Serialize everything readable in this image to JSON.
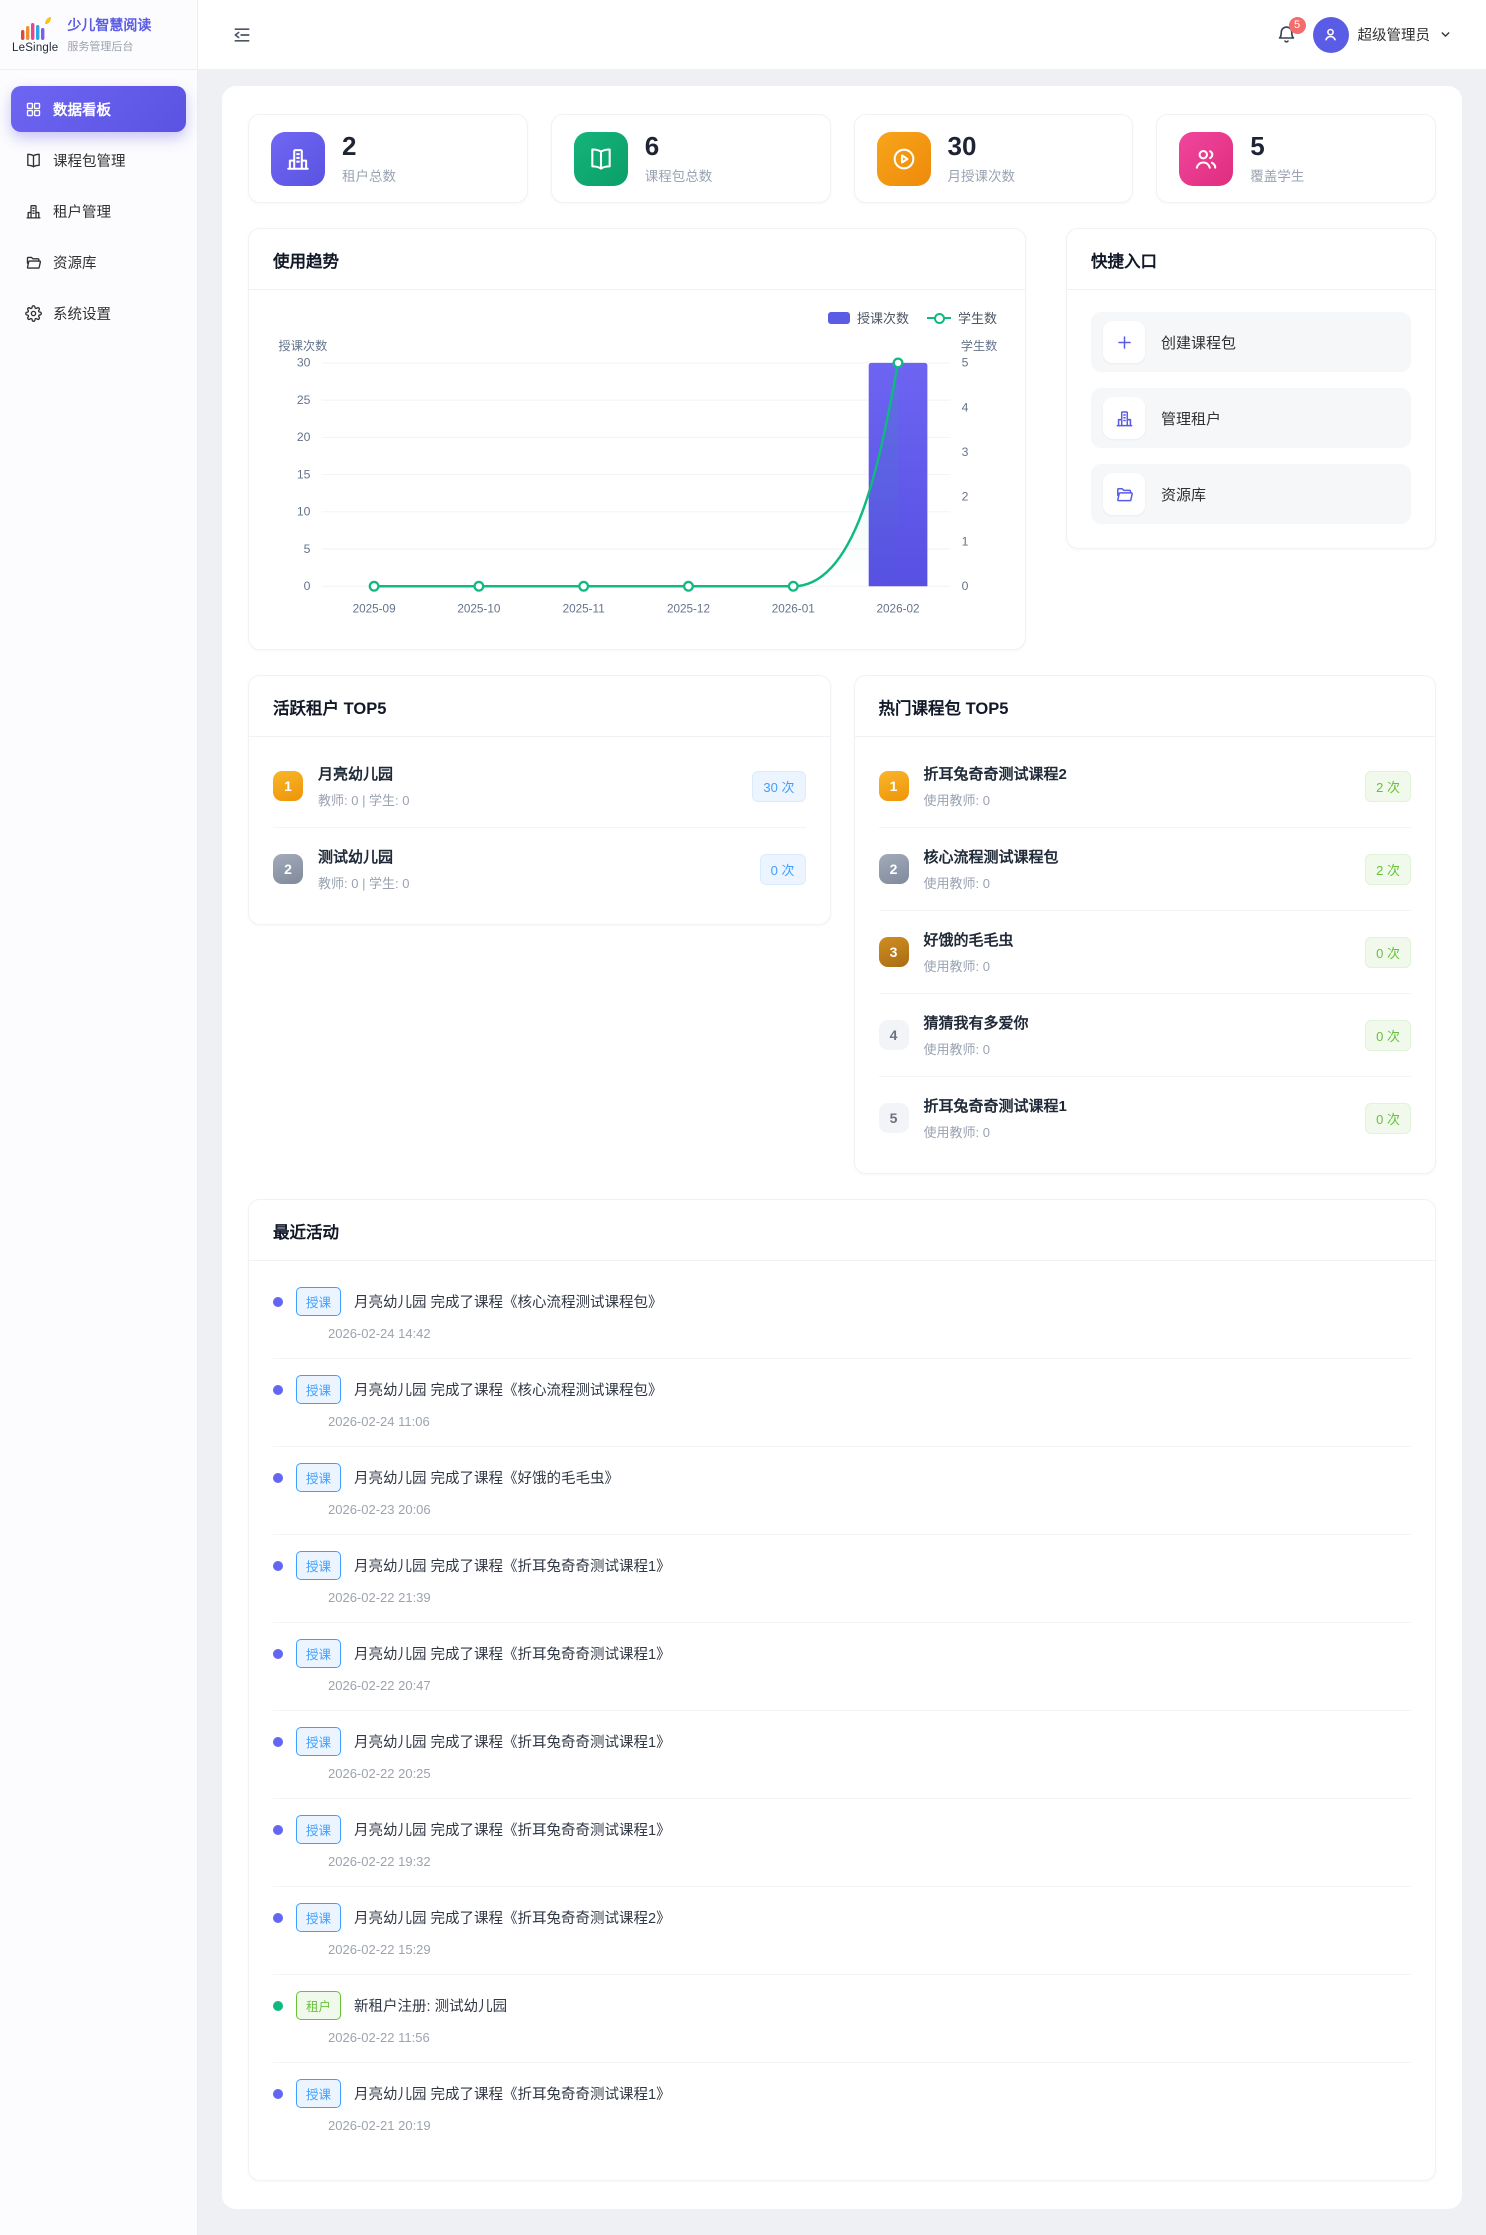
{
  "brand": {
    "logo_text": "LeSingle",
    "title": "少儿智慧阅读",
    "subtitle": "服务管理后台"
  },
  "header": {
    "notification_count": "5",
    "user_name": "超级管理员"
  },
  "sidebar": {
    "items": [
      {
        "label": "数据看板",
        "icon": "grid",
        "active": true
      },
      {
        "label": "课程包管理",
        "icon": "book",
        "active": false
      },
      {
        "label": "租户管理",
        "icon": "building",
        "active": false
      },
      {
        "label": "资源库",
        "icon": "folder",
        "active": false
      },
      {
        "label": "系统设置",
        "icon": "gear",
        "active": false
      }
    ]
  },
  "stats": [
    {
      "value": "2",
      "label": "租户总数",
      "icon": "building",
      "color_from": "#7068f5",
      "color_to": "#5a52e0"
    },
    {
      "value": "6",
      "label": "课程包总数",
      "icon": "book",
      "color_from": "#13b47b",
      "color_to": "#0c9e69"
    },
    {
      "value": "30",
      "label": "月授课次数",
      "icon": "play",
      "color_from": "#f7a51b",
      "color_to": "#ee8a0a"
    },
    {
      "value": "5",
      "label": "覆盖学生",
      "icon": "people",
      "color_from": "#f0479c",
      "color_to": "#e02c7f"
    }
  ],
  "usage_trend": {
    "title": "使用趋势",
    "chart_data": {
      "type": "bar",
      "categories": [
        "2025-09",
        "2025-10",
        "2025-11",
        "2025-12",
        "2026-01",
        "2026-02"
      ],
      "series": [
        {
          "name": "授课次数",
          "kind": "bar",
          "values": [
            0,
            0,
            0,
            0,
            0,
            30
          ],
          "color": "#5b5ce6",
          "axis": "left"
        },
        {
          "name": "学生数",
          "kind": "line",
          "values": [
            0,
            0,
            0,
            0,
            0,
            5
          ],
          "color": "#10b981",
          "axis": "right"
        }
      ],
      "left_axis": {
        "label": "授课次数",
        "ticks": [
          0,
          5,
          10,
          15,
          20,
          25,
          30
        ],
        "max": 30
      },
      "right_axis": {
        "label": "学生数",
        "ticks": [
          0,
          1,
          2,
          3,
          4,
          5
        ],
        "max": 5
      },
      "legend_position": "top-right",
      "grid": true
    }
  },
  "quick_entry": {
    "title": "快捷入口",
    "items": [
      {
        "label": "创建课程包",
        "icon": "plus"
      },
      {
        "label": "管理租户",
        "icon": "building"
      },
      {
        "label": "资源库",
        "icon": "folder"
      }
    ]
  },
  "active_tenants": {
    "title": "活跃租户 TOP5",
    "count_style": "blue",
    "items": [
      {
        "rank": "1",
        "name": "月亮幼儿园",
        "meta": "教师: 0 | 学生: 0",
        "count": "30 次"
      },
      {
        "rank": "2",
        "name": "测试幼儿园",
        "meta": "教师: 0 | 学生: 0",
        "count": "0 次"
      }
    ]
  },
  "hot_packages": {
    "title": "热门课程包 TOP5",
    "count_style": "green",
    "items": [
      {
        "rank": "1",
        "name": "折耳兔奇奇测试课程2",
        "meta": "使用教师: 0",
        "count": "2 次"
      },
      {
        "rank": "2",
        "name": "核心流程测试课程包",
        "meta": "使用教师: 0",
        "count": "2 次"
      },
      {
        "rank": "3",
        "name": "好饿的毛毛虫",
        "meta": "使用教师: 0",
        "count": "0 次"
      },
      {
        "rank": "4",
        "name": "猜猜我有多爱你",
        "meta": "使用教师: 0",
        "count": "0 次"
      },
      {
        "rank": "5",
        "name": "折耳兔奇奇测试课程1",
        "meta": "使用教师: 0",
        "count": "0 次"
      }
    ]
  },
  "recent_activity": {
    "title": "最近活动",
    "items": [
      {
        "type": "授课",
        "kind": "lesson",
        "text": "月亮幼儿园 完成了课程《核心流程测试课程包》",
        "time": "2026-02-24 14:42"
      },
      {
        "type": "授课",
        "kind": "lesson",
        "text": "月亮幼儿园 完成了课程《核心流程测试课程包》",
        "time": "2026-02-24 11:06"
      },
      {
        "type": "授课",
        "kind": "lesson",
        "text": "月亮幼儿园 完成了课程《好饿的毛毛虫》",
        "time": "2026-02-23 20:06"
      },
      {
        "type": "授课",
        "kind": "lesson",
        "text": "月亮幼儿园 完成了课程《折耳兔奇奇测试课程1》",
        "time": "2026-02-22 21:39"
      },
      {
        "type": "授课",
        "kind": "lesson",
        "text": "月亮幼儿园 完成了课程《折耳兔奇奇测试课程1》",
        "time": "2026-02-22 20:47"
      },
      {
        "type": "授课",
        "kind": "lesson",
        "text": "月亮幼儿园 完成了课程《折耳兔奇奇测试课程1》",
        "time": "2026-02-22 20:25"
      },
      {
        "type": "授课",
        "kind": "lesson",
        "text": "月亮幼儿园 完成了课程《折耳兔奇奇测试课程1》",
        "time": "2026-02-22 19:32"
      },
      {
        "type": "授课",
        "kind": "lesson",
        "text": "月亮幼儿园 完成了课程《折耳兔奇奇测试课程2》",
        "time": "2026-02-22 15:29"
      },
      {
        "type": "租户",
        "kind": "tenant",
        "text": "新租户注册: 测试幼儿园",
        "time": "2026-02-22 11:56"
      },
      {
        "type": "授课",
        "kind": "lesson",
        "text": "月亮幼儿园 完成了课程《折耳兔奇奇测试课程1》",
        "time": "2026-02-21 20:19"
      }
    ]
  },
  "colors": {
    "primary": "#5b5ce6",
    "line_series": "#10b981",
    "tag_blue": "#409eff",
    "tag_green": "#67c23a",
    "badge_red": "#f56c6c"
  }
}
